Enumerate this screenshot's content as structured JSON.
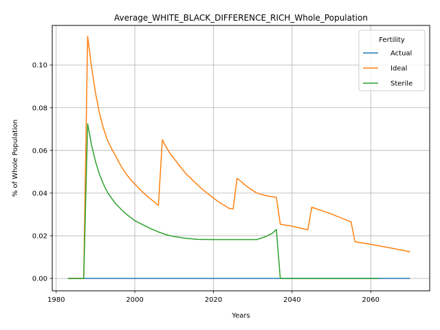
{
  "chart_data": {
    "type": "line",
    "title": "Average_WHITE_BLACK_DIFFERENCE_RICH_Whole_Population",
    "xlabel": "Years",
    "ylabel": "% of Whole Population",
    "xlim": [
      1979,
      2075
    ],
    "ylim": [
      -0.0058,
      0.1186
    ],
    "xticks": [
      1980,
      2000,
      2020,
      2040,
      2060
    ],
    "yticks": [
      0.0,
      0.02,
      0.04,
      0.06,
      0.08,
      0.1
    ],
    "ytick_labels": [
      "0.00",
      "0.02",
      "0.04",
      "0.06",
      "0.08",
      "0.10"
    ],
    "grid": true,
    "legend": {
      "title": "Fertility",
      "placement": "top-right"
    },
    "series": [
      {
        "name": "Actual",
        "color": "#1f77b4",
        "points": [
          [
            1983,
            0.0
          ],
          [
            2070,
            0.0
          ]
        ]
      },
      {
        "name": "Ideal",
        "color": "#ff7f0e",
        "points": [
          [
            1983,
            0.0
          ],
          [
            1987,
            0.0
          ],
          [
            1988,
            0.1135
          ],
          [
            1989,
            0.099
          ],
          [
            1990,
            0.087
          ],
          [
            1991,
            0.0775
          ],
          [
            1992,
            0.0705
          ],
          [
            1993,
            0.065
          ],
          [
            1994,
            0.0612
          ],
          [
            1995,
            0.0578
          ],
          [
            1996,
            0.0543
          ],
          [
            1997,
            0.0512
          ],
          [
            1998,
            0.0485
          ],
          [
            1999,
            0.0462
          ],
          [
            2000,
            0.0443
          ],
          [
            2001,
            0.0423
          ],
          [
            2002,
            0.0405
          ],
          [
            2003,
            0.0388
          ],
          [
            2004,
            0.0373
          ],
          [
            2005,
            0.0358
          ],
          [
            2006,
            0.0342
          ],
          [
            2007,
            0.065
          ],
          [
            2008,
            0.0615
          ],
          [
            2009,
            0.0585
          ],
          [
            2010,
            0.0562
          ],
          [
            2011,
            0.0537
          ],
          [
            2012,
            0.0514
          ],
          [
            2013,
            0.049
          ],
          [
            2014,
            0.0474
          ],
          [
            2015,
            0.0455
          ],
          [
            2016,
            0.0438
          ],
          [
            2017,
            0.0421
          ],
          [
            2018,
            0.0406
          ],
          [
            2019,
            0.0391
          ],
          [
            2020,
            0.0377
          ],
          [
            2021,
            0.0363
          ],
          [
            2022,
            0.0351
          ],
          [
            2023,
            0.034
          ],
          [
            2024,
            0.0328
          ],
          [
            2025,
            0.0326
          ],
          [
            2026,
            0.0469
          ],
          [
            2027,
            0.0455
          ],
          [
            2028,
            0.0438
          ],
          [
            2029,
            0.0425
          ],
          [
            2030,
            0.0412
          ],
          [
            2031,
            0.0401
          ],
          [
            2032,
            0.0395
          ],
          [
            2033,
            0.039
          ],
          [
            2034,
            0.0386
          ],
          [
            2035,
            0.0383
          ],
          [
            2036,
            0.038
          ],
          [
            2037,
            0.0254
          ],
          [
            2038,
            0.0251
          ],
          [
            2039,
            0.0248
          ],
          [
            2040,
            0.0245
          ],
          [
            2041,
            0.0241
          ],
          [
            2042,
            0.0236
          ],
          [
            2043,
            0.0232
          ],
          [
            2044,
            0.0228
          ],
          [
            2045,
            0.0334
          ],
          [
            2050,
            0.0302
          ],
          [
            2055,
            0.0265
          ],
          [
            2056,
            0.0172
          ],
          [
            2060,
            0.016
          ],
          [
            2065,
            0.0143
          ],
          [
            2070,
            0.0125
          ]
        ]
      },
      {
        "name": "Sterile",
        "color": "#2ca02c",
        "points": [
          [
            1983,
            0.0
          ],
          [
            1987,
            0.0
          ],
          [
            1988,
            0.0725
          ],
          [
            1989,
            0.0625
          ],
          [
            1990,
            0.0548
          ],
          [
            1991,
            0.0488
          ],
          [
            1992,
            0.0443
          ],
          [
            1993,
            0.0405
          ],
          [
            1994,
            0.0378
          ],
          [
            1995,
            0.0353
          ],
          [
            1996,
            0.0334
          ],
          [
            1997,
            0.0315
          ],
          [
            1998,
            0.0299
          ],
          [
            1999,
            0.0285
          ],
          [
            2000,
            0.0271
          ],
          [
            2002,
            0.0252
          ],
          [
            2004,
            0.0234
          ],
          [
            2006,
            0.0218
          ],
          [
            2008,
            0.0205
          ],
          [
            2010,
            0.0196
          ],
          [
            2013,
            0.0188
          ],
          [
            2016,
            0.0183
          ],
          [
            2020,
            0.0182
          ],
          [
            2025,
            0.0182
          ],
          [
            2031,
            0.0182
          ],
          [
            2033,
            0.0194
          ],
          [
            2035,
            0.0212
          ],
          [
            2036,
            0.0229
          ],
          [
            2037,
            0.0
          ],
          [
            2062,
            0.0
          ]
        ]
      }
    ]
  }
}
